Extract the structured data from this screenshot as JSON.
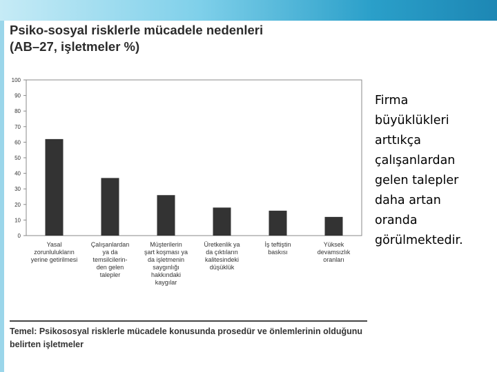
{
  "chart_data": {
    "type": "bar",
    "title": "Psiko-sosyal risklerle mücadele nedenleri",
    "subtitle": "(AB–27, işletmeler %)",
    "categories": [
      [
        "Yasal",
        "zorunlulukların",
        "yerine getirilmesi"
      ],
      [
        "Çalışanlardan",
        "ya da",
        "temsilcilerin-",
        "den gelen",
        "talepler"
      ],
      [
        "Müşterilerin",
        "şart koşması ya",
        "da işletmenin",
        "saygınlığı",
        "hakkındaki",
        "kaygılar"
      ],
      [
        "Üretkenlik ya",
        "da çıktıların",
        "kalitesindeki",
        "düşüklük"
      ],
      [
        "İş teftiştin",
        "baskısı"
      ],
      [
        "Yüksek",
        "devamsızlık",
        "oranları"
      ]
    ],
    "values": [
      62,
      37,
      26,
      18,
      16,
      12
    ],
    "ylim": [
      0,
      100
    ],
    "yticks": [
      "0",
      "10",
      "20",
      "30",
      "40",
      "50",
      "60",
      "70",
      "80",
      "90",
      "100"
    ],
    "grid": false,
    "colors": {
      "bar": "#333333",
      "axis": "#888888"
    },
    "footnote": "Temel: Psikososyal risklerle mücadele konusunda prosedür ve önlemlerinin olduğunu belirten işletmeler"
  },
  "side_text_lines": [
    "Firma",
    "büyüklükleri",
    "arttıkça",
    "çalışanlardan",
    "gelen talepler",
    "daha artan",
    "oranda",
    "görülmektedir."
  ]
}
